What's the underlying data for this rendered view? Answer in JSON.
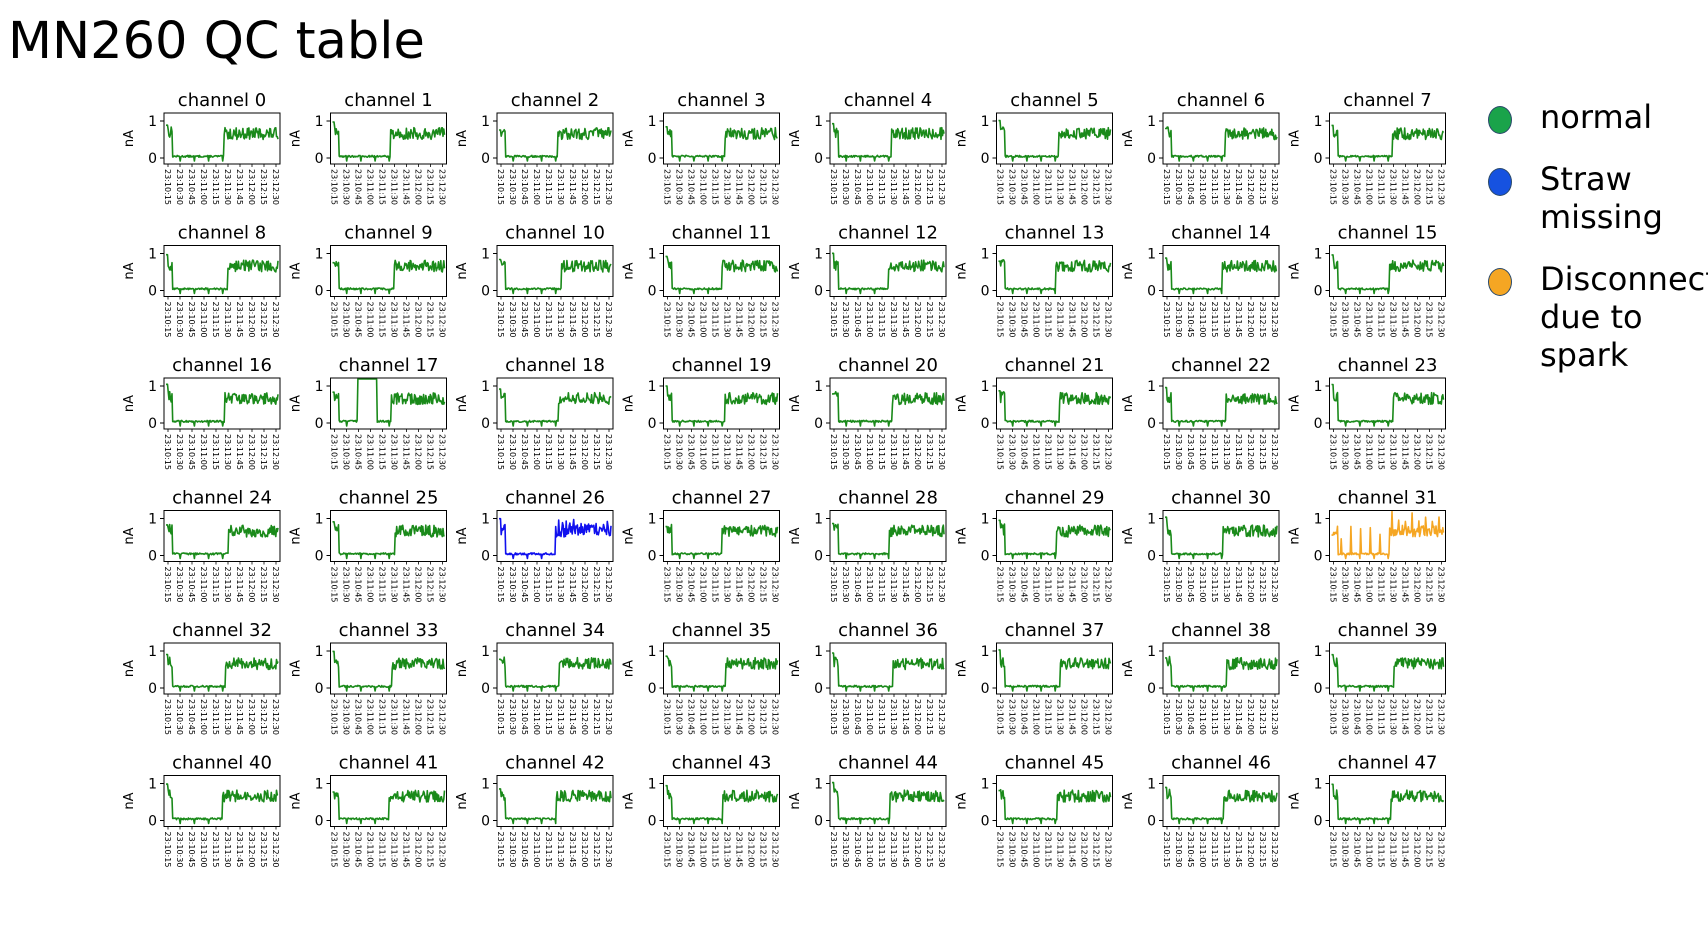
{
  "page": {
    "title": "MN260 QC table"
  },
  "legend": {
    "items": [
      {
        "label": "normal",
        "color": "#1aa34a"
      },
      {
        "label": "Straw missing",
        "color": "#1652e0"
      },
      {
        "label": "Disconnect due to spark",
        "color": "#f5a623"
      }
    ]
  },
  "chart_data": {
    "type": "line",
    "layout": "6x8 small multiples",
    "ylabel": "nA",
    "yticks": [
      "0",
      "1"
    ],
    "ylim": [
      0,
      1
    ],
    "xticks": [
      "23:10:15",
      "23:10:30",
      "23:10:45",
      "23:11:00",
      "23:11:15",
      "23:11:30",
      "23:11:45",
      "23:12:00",
      "23:12:15",
      "23:12:30"
    ],
    "colors": {
      "normal": "#1a8a1a",
      "straw_missing": "#1010ee",
      "spark": "#f5a623"
    },
    "panels": [
      {
        "title": "channel 0",
        "status": "normal"
      },
      {
        "title": "channel 1",
        "status": "normal"
      },
      {
        "title": "channel 2",
        "status": "normal"
      },
      {
        "title": "channel 3",
        "status": "normal"
      },
      {
        "title": "channel 4",
        "status": "normal"
      },
      {
        "title": "channel 5",
        "status": "normal"
      },
      {
        "title": "channel 6",
        "status": "normal"
      },
      {
        "title": "channel 7",
        "status": "normal"
      },
      {
        "title": "channel 8",
        "status": "normal"
      },
      {
        "title": "channel 9",
        "status": "normal"
      },
      {
        "title": "channel 10",
        "status": "normal"
      },
      {
        "title": "channel 11",
        "status": "normal"
      },
      {
        "title": "channel 12",
        "status": "normal"
      },
      {
        "title": "channel 13",
        "status": "normal"
      },
      {
        "title": "channel 14",
        "status": "normal"
      },
      {
        "title": "channel 15",
        "status": "normal"
      },
      {
        "title": "channel 16",
        "status": "normal"
      },
      {
        "title": "channel 17",
        "status": "normal"
      },
      {
        "title": "channel 18",
        "status": "normal"
      },
      {
        "title": "channel 19",
        "status": "normal"
      },
      {
        "title": "channel 20",
        "status": "normal"
      },
      {
        "title": "channel 21",
        "status": "normal"
      },
      {
        "title": "channel 22",
        "status": "normal"
      },
      {
        "title": "channel 23",
        "status": "normal"
      },
      {
        "title": "channel 24",
        "status": "normal"
      },
      {
        "title": "channel 25",
        "status": "normal"
      },
      {
        "title": "channel 26",
        "status": "straw_missing"
      },
      {
        "title": "channel 27",
        "status": "normal"
      },
      {
        "title": "channel 28",
        "status": "normal"
      },
      {
        "title": "channel 29",
        "status": "normal"
      },
      {
        "title": "channel 30",
        "status": "normal"
      },
      {
        "title": "channel 31",
        "status": "spark"
      },
      {
        "title": "channel 32",
        "status": "normal"
      },
      {
        "title": "channel 33",
        "status": "normal"
      },
      {
        "title": "channel 34",
        "status": "normal"
      },
      {
        "title": "channel 35",
        "status": "normal"
      },
      {
        "title": "channel 36",
        "status": "normal"
      },
      {
        "title": "channel 37",
        "status": "normal"
      },
      {
        "title": "channel 38",
        "status": "normal"
      },
      {
        "title": "channel 39",
        "status": "normal"
      },
      {
        "title": "channel 40",
        "status": "normal"
      },
      {
        "title": "channel 41",
        "status": "normal"
      },
      {
        "title": "channel 42",
        "status": "normal"
      },
      {
        "title": "channel 43",
        "status": "normal"
      },
      {
        "title": "channel 44",
        "status": "normal"
      },
      {
        "title": "channel 45",
        "status": "normal"
      },
      {
        "title": "channel 46",
        "status": "normal"
      },
      {
        "title": "channel 47",
        "status": "normal"
      }
    ]
  }
}
